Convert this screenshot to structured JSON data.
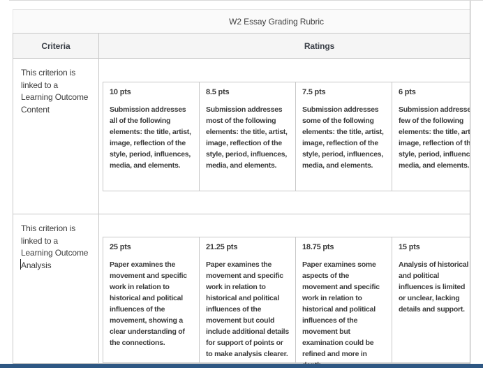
{
  "title": "W2 Essay Grading Rubric",
  "colors": {
    "accent_bar": "#2e5783",
    "table_border": "#c8c8c8",
    "title_bg": "#fafafa",
    "header_bg": "#f5f5f5"
  },
  "rubric": {
    "headers": {
      "criteria": "Criteria",
      "ratings": "Ratings"
    },
    "rows": [
      {
        "criterion": "This criterion is\nlinked to a\nLearning Outcome\nContent",
        "ratings": [
          {
            "pts": "10 pts",
            "desc": "Submission addresses all of the following elements: the title, artist, image, reflection of the style, period, influences, media, and elements."
          },
          {
            "pts": "8.5 pts",
            "desc": "Submission addresses most of the following elements: the title, artist, image, reflection of the style, period, influences, media, and elements."
          },
          {
            "pts": "7.5 pts",
            "desc": "Submission addresses some of the following elements: the title, artist, image, reflection of the style, period, influences, media, and elements."
          },
          {
            "pts": "6 pts",
            "desc": "Submission addresses few of the following elements: the title, artist, image, reflection of the style, period, influences, media, and elements."
          }
        ]
      },
      {
        "criterion": "This criterion is\nlinked to a\nLearning Outcome\nAnalysis",
        "ratings": [
          {
            "pts": "25 pts",
            "desc": "Paper examines the movement and specific work in relation to historical and political influences of the movement, showing a clear understanding of the connections."
          },
          {
            "pts": "21.25 pts",
            "desc": "Paper examines the movement and specific work in relation to historical and political influences of the movement but could include additional details for support of points or to make analysis clearer."
          },
          {
            "pts": "18.75 pts",
            "desc": "Paper examines some aspects of the movement and specific work in relation to historical and political influences of the movement but examination could be refined and more in depth."
          },
          {
            "pts": "15 pts",
            "desc": "Analysis of historical and political influences is limited or unclear, lacking details and support."
          }
        ]
      }
    ]
  }
}
